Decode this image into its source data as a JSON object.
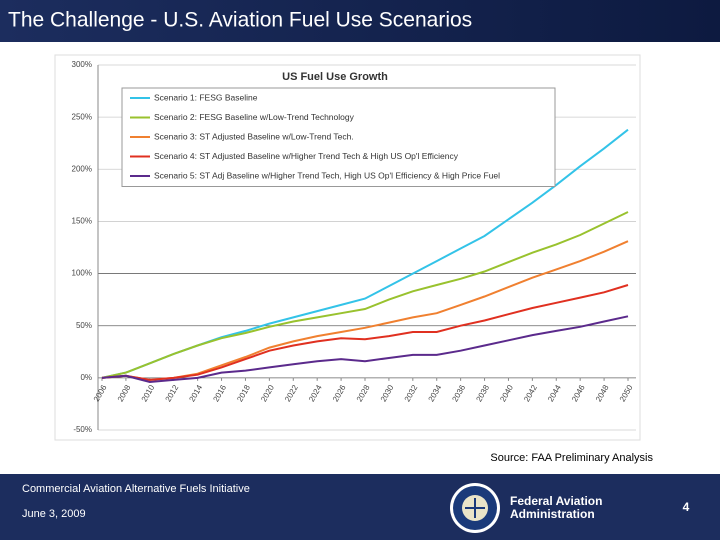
{
  "slide": {
    "title": "The Challenge - U.S. Aviation Fuel Use Scenarios",
    "source": "Source: FAA Preliminary Analysis",
    "footer": {
      "org": "Commercial Aviation Alternative Fuels Initiative",
      "date": "June 3, 2009",
      "agency": [
        "Federal Aviation",
        "Administration"
      ],
      "page": "4"
    }
  },
  "chart_data": {
    "type": "line",
    "title": "US Fuel Use Growth",
    "x": [
      2006,
      2008,
      2010,
      2012,
      2014,
      2016,
      2018,
      2020,
      2022,
      2024,
      2026,
      2028,
      2030,
      2032,
      2034,
      2036,
      2038,
      2040,
      2042,
      2044,
      2046,
      2048,
      2050
    ],
    "xlim": [
      2006,
      2050
    ],
    "xticks": [
      2006,
      2008,
      2010,
      2012,
      2014,
      2016,
      2018,
      2020,
      2022,
      2024,
      2026,
      2028,
      2030,
      2032,
      2034,
      2036,
      2038,
      2040,
      2042,
      2044,
      2046,
      2048,
      2050
    ],
    "ylim": [
      -50,
      300
    ],
    "yticks": [
      {
        "value": -50,
        "label": "-50%"
      },
      {
        "value": 0,
        "label": "0%"
      },
      {
        "value": 50,
        "label": "50%"
      },
      {
        "value": 100,
        "label": "100%"
      },
      {
        "value": 150,
        "label": "150%"
      },
      {
        "value": 200,
        "label": "200%"
      },
      {
        "value": 250,
        "label": "250%"
      },
      {
        "value": 300,
        "label": "300%"
      }
    ],
    "grid": true,
    "legend": "top-left",
    "series": [
      {
        "name": "Scenario 1: FESG Baseline",
        "color": "#33c3e8",
        "values": [
          0,
          5,
          14,
          23,
          31,
          39,
          45,
          52,
          58,
          64,
          70,
          76,
          88,
          100,
          112,
          124,
          136,
          152,
          168,
          185,
          203,
          220,
          238
        ]
      },
      {
        "name": "Scenario 2: FESG Baseline w/Low-Trend Technology",
        "color": "#99c22e",
        "values": [
          0,
          5,
          14,
          23,
          31,
          38,
          43,
          49,
          54,
          58,
          62,
          66,
          75,
          83,
          89,
          95,
          102,
          111,
          120,
          128,
          137,
          148,
          159
        ]
      },
      {
        "name": "Scenario 3: ST Adjusted Baseline w/Low-Trend Tech.",
        "color": "#f08030",
        "values": [
          0,
          2,
          -2,
          0,
          4,
          12,
          20,
          29,
          35,
          40,
          44,
          48,
          53,
          58,
          62,
          70,
          78,
          87,
          96,
          104,
          112,
          121,
          131
        ]
      },
      {
        "name": "Scenario 4: ST Adjusted Baseline w/Higher Trend Tech & High US Op'l Efficiency",
        "color": "#e03020",
        "values": [
          0,
          2,
          -2,
          0,
          3,
          10,
          18,
          26,
          31,
          35,
          38,
          37,
          40,
          44,
          44,
          50,
          55,
          61,
          67,
          72,
          77,
          82,
          89
        ]
      },
      {
        "name": "Scenario 5: ST Adj Baseline w/Higher Trend Tech, High US Op'l Efficiency & High Price Fuel",
        "color": "#5b2a8c",
        "values": [
          0,
          2,
          -4,
          -2,
          0,
          5,
          7,
          10,
          13,
          16,
          18,
          16,
          19,
          22,
          22,
          26,
          31,
          36,
          41,
          45,
          49,
          54,
          59
        ]
      }
    ]
  }
}
